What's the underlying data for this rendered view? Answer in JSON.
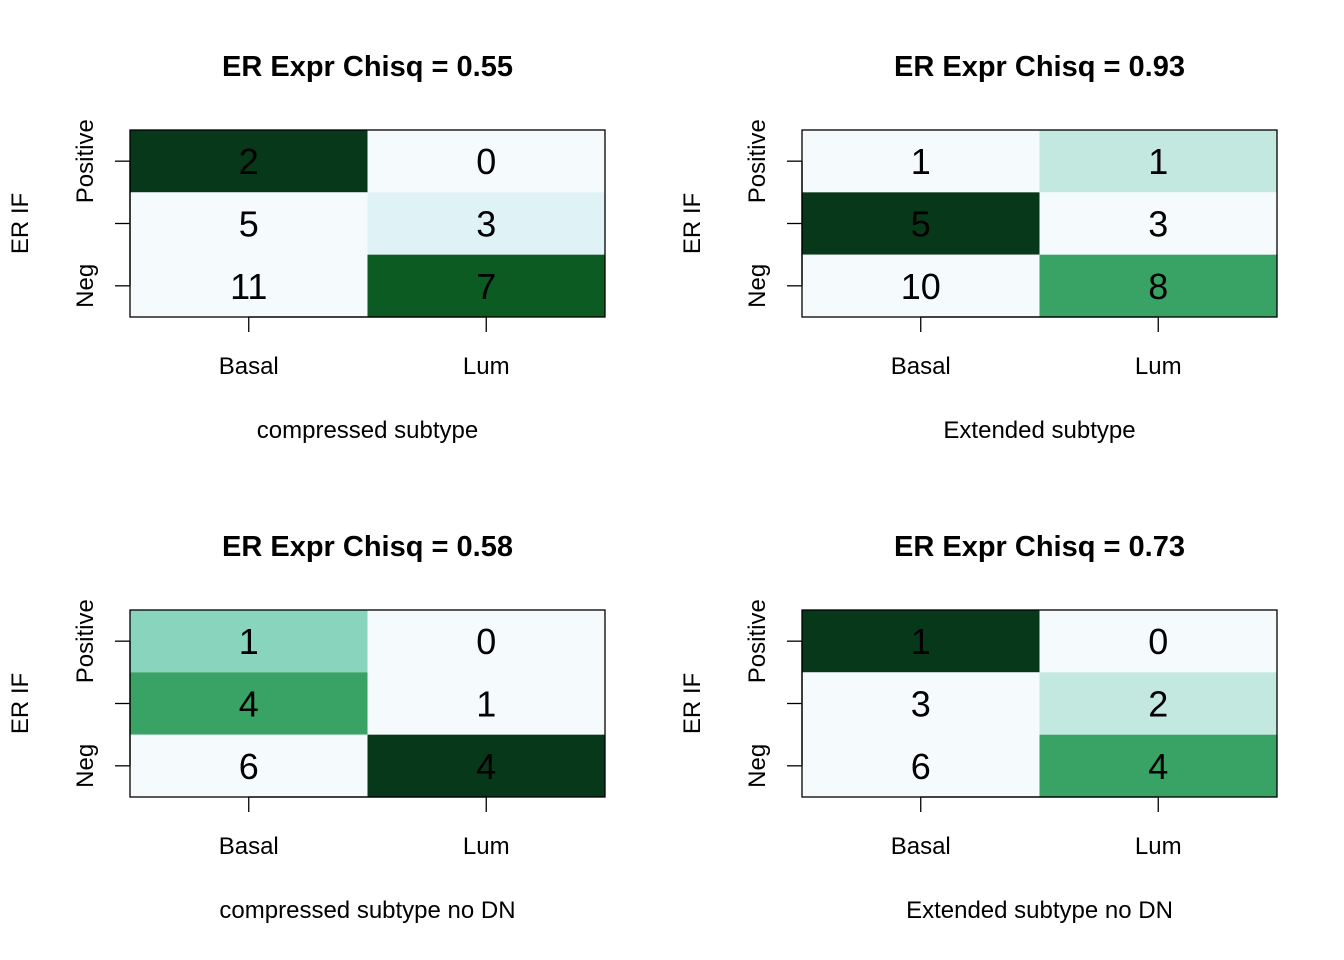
{
  "chart_data": [
    {
      "type": "heatmap",
      "title": "ER Expr Chisq = 0.55",
      "xlabel": "compressed subtype",
      "ylabel": "ER IF",
      "x_categories": [
        "Basal",
        "Lum"
      ],
      "y_tick_labels": [
        "Positive",
        "",
        "Neg"
      ],
      "cells": [
        [
          2,
          0
        ],
        [
          5,
          3
        ],
        [
          11,
          7
        ]
      ],
      "cell_colors": [
        [
          "#08381a",
          "#f5fafc"
        ],
        [
          "#f5fafc",
          "#dff2f6"
        ],
        [
          "#f5fafc",
          "#0c5b23"
        ]
      ]
    },
    {
      "type": "heatmap",
      "title": "ER Expr Chisq = 0.93",
      "xlabel": "Extended subtype",
      "ylabel": "ER IF",
      "x_categories": [
        "Basal",
        "Lum"
      ],
      "y_tick_labels": [
        "Positive",
        "",
        "Neg"
      ],
      "cells": [
        [
          1,
          1
        ],
        [
          5,
          3
        ],
        [
          10,
          8
        ]
      ],
      "cell_colors": [
        [
          "#f5fafc",
          "#c3e8df"
        ],
        [
          "#08381a",
          "#f5fafc"
        ],
        [
          "#f5fafc",
          "#38a364"
        ]
      ]
    },
    {
      "type": "heatmap",
      "title": "ER Expr Chisq = 0.58",
      "xlabel": "compressed subtype no DN",
      "ylabel": "ER IF",
      "x_categories": [
        "Basal",
        "Lum"
      ],
      "y_tick_labels": [
        "Positive",
        "",
        "Neg"
      ],
      "cells": [
        [
          1,
          0
        ],
        [
          4,
          1
        ],
        [
          6,
          4
        ]
      ],
      "cell_colors": [
        [
          "#89d4bd",
          "#f5fafc"
        ],
        [
          "#38a364",
          "#f5fafc"
        ],
        [
          "#f5fafc",
          "#08381a"
        ]
      ]
    },
    {
      "type": "heatmap",
      "title": "ER Expr Chisq = 0.73",
      "xlabel": "Extended subtype no DN",
      "ylabel": "ER IF",
      "x_categories": [
        "Basal",
        "Lum"
      ],
      "y_tick_labels": [
        "Positive",
        "",
        "Neg"
      ],
      "cells": [
        [
          1,
          0
        ],
        [
          3,
          2
        ],
        [
          6,
          4
        ]
      ],
      "cell_colors": [
        [
          "#08381a",
          "#f5fafc"
        ],
        [
          "#f5fafc",
          "#c3e8df"
        ],
        [
          "#f5fafc",
          "#38a364"
        ]
      ]
    }
  ]
}
